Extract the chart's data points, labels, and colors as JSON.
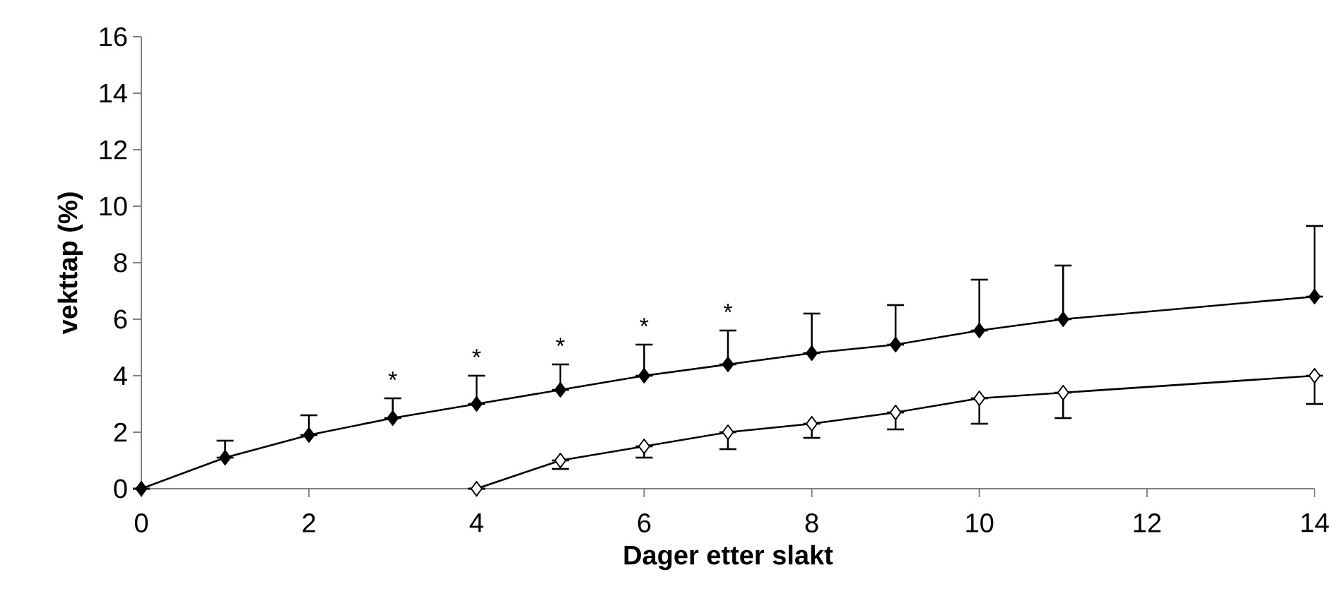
{
  "chart_data": {
    "type": "line",
    "xlabel": "Dager etter slakt",
    "ylabel": "vekttap (%)",
    "xlim": [
      0,
      14
    ],
    "xticks": [
      0,
      2,
      4,
      6,
      8,
      10,
      12,
      14
    ],
    "ylim": [
      0,
      16
    ],
    "yticks": [
      0,
      2,
      4,
      6,
      8,
      10,
      12,
      14,
      16
    ],
    "grid": false,
    "marker": "diamond",
    "line_style": "solid",
    "series": [
      {
        "color": "#000000",
        "x": [
          0,
          1,
          2,
          3,
          4,
          5,
          6,
          7,
          8,
          9,
          10,
          11,
          14
        ],
        "values": [
          0,
          1.1,
          1.9,
          2.5,
          3.0,
          3.5,
          4.0,
          4.4,
          4.8,
          5.1,
          5.6,
          6.0,
          6.8
        ],
        "errors": [
          null,
          [
            1.1,
            1.7
          ],
          [
            1.9,
            2.6
          ],
          [
            2.5,
            3.2
          ],
          [
            3.0,
            4.0
          ],
          [
            3.5,
            4.4
          ],
          [
            4.0,
            5.1
          ],
          [
            4.4,
            5.6
          ],
          [
            4.8,
            6.2
          ],
          [
            5.1,
            6.5
          ],
          [
            5.6,
            7.4
          ],
          [
            6.0,
            7.9
          ],
          [
            6.8,
            9.3
          ]
        ]
      },
      {
        "color": "#000000",
        "colors": [
          "#ffffff",
          "#ffffff",
          "#ffffff",
          "#ffffff",
          "#ffffff",
          "#ffffff",
          "#ffffff",
          "#ffffff",
          "#ffffff"
        ],
        "x": [
          4,
          5,
          6,
          7,
          8,
          9,
          10,
          11,
          14
        ],
        "values": [
          0,
          1.0,
          1.5,
          2.0,
          2.3,
          2.7,
          3.2,
          3.4,
          4.0
        ],
        "errors": [
          null,
          [
            0.7,
            1.0
          ],
          [
            1.1,
            1.5
          ],
          [
            1.4,
            2.0
          ],
          [
            1.8,
            2.3
          ],
          [
            2.1,
            2.7
          ],
          [
            2.3,
            3.2
          ],
          [
            2.5,
            3.4
          ],
          [
            3.0,
            4.0
          ]
        ]
      }
    ],
    "annotations": [
      {
        "text": "*",
        "x": 3,
        "y": 3.2
      },
      {
        "text": "*",
        "x": 4,
        "y": 4.0
      },
      {
        "text": "*",
        "x": 5,
        "y": 4.4
      },
      {
        "text": "*",
        "x": 6,
        "y": 5.1
      },
      {
        "text": "*",
        "x": 7,
        "y": 5.6
      }
    ]
  }
}
